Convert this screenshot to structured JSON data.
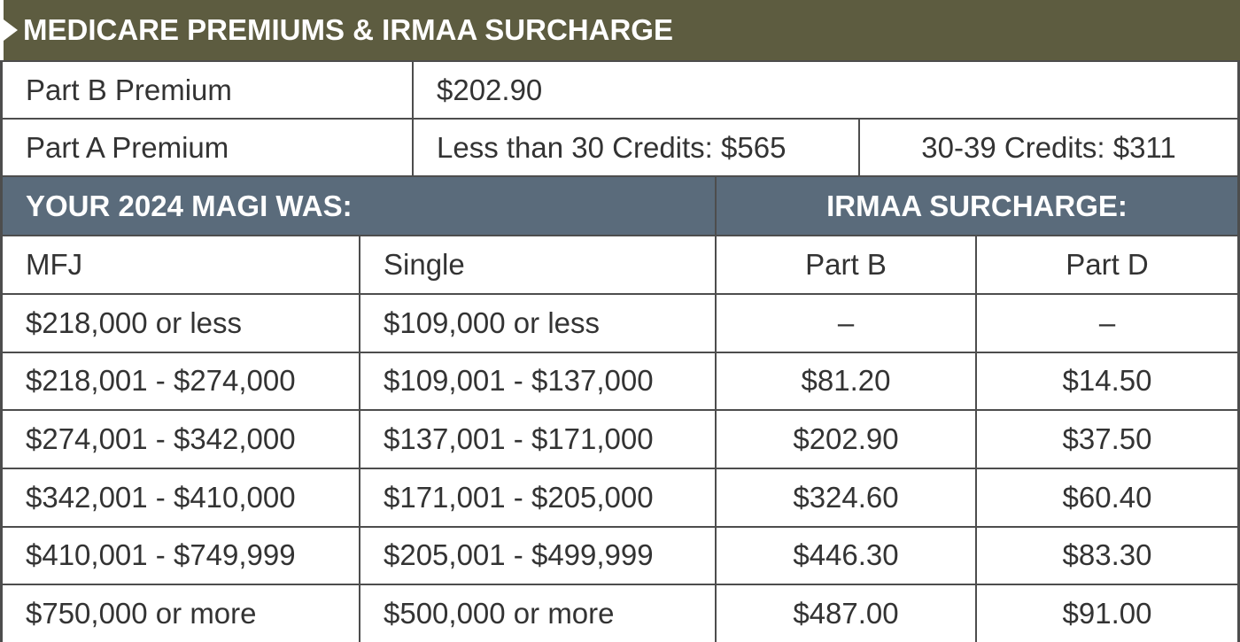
{
  "header": {
    "title": "MEDICARE PREMIUMS & IRMAA SURCHARGE"
  },
  "premiums": {
    "rows": [
      {
        "label": "Part B Premium",
        "values": [
          "$202.90"
        ]
      },
      {
        "label": "Part A Premium",
        "values": [
          "Less than 30 Credits: $565",
          "30-39 Credits: $311"
        ]
      }
    ]
  },
  "table": {
    "group_headers": [
      "YOUR 2024 MAGI WAS:",
      "IRMAA SURCHARGE:"
    ],
    "columns": [
      "MFJ",
      "Single",
      "Part B",
      "Part D"
    ],
    "rows": [
      [
        "$218,000 or less",
        "$109,000 or less",
        "–",
        "–"
      ],
      [
        "$218,001 - $274,000",
        "$109,001 - $137,000",
        "$81.20",
        "$14.50"
      ],
      [
        "$274,001 - $342,000",
        "$137,001 - $171,000",
        "$202.90",
        "$37.50"
      ],
      [
        "$342,001 - $410,000",
        "$171,001 - $205,000",
        "$324.60",
        "$60.40"
      ],
      [
        "$410,001 - $749,999",
        "$205,001 - $499,999",
        "$446.30",
        "$83.30"
      ],
      [
        "$750,000 or more",
        "$500,000 or more",
        "$487.00",
        "$91.00"
      ]
    ]
  }
}
